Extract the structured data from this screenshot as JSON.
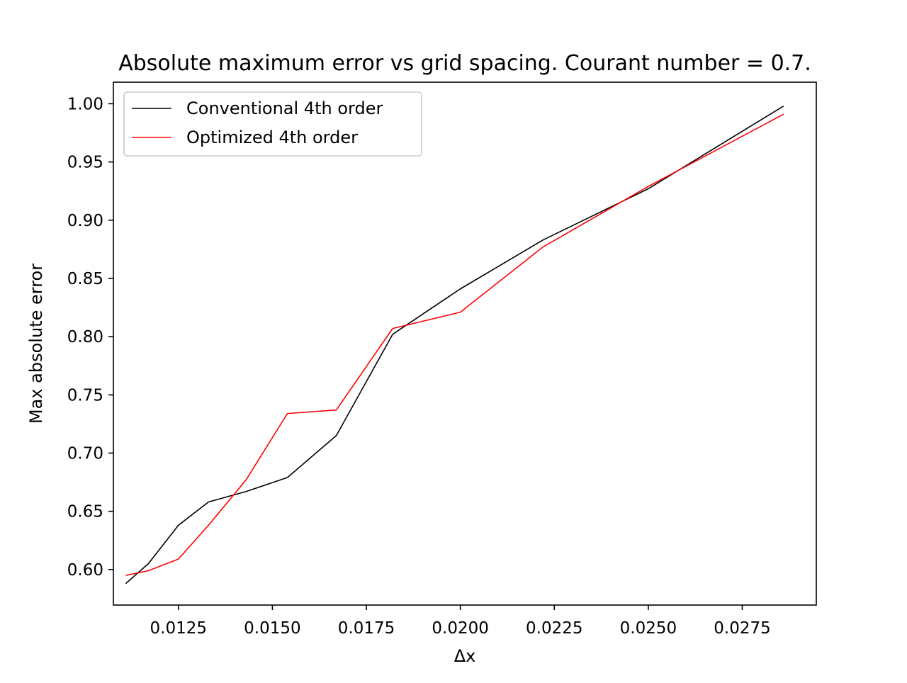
{
  "chart_data": {
    "type": "line",
    "title": "Absolute maximum error vs grid spacing. Courant number = 0.7.",
    "xlabel": "Δx",
    "ylabel": "Max absolute error",
    "xlim": [
      0.01077,
      0.02947
    ],
    "ylim": [
      0.5695,
      1.0185
    ],
    "x_ticks": [
      0.0125,
      0.015,
      0.0175,
      0.02,
      0.0225,
      0.025,
      0.0275
    ],
    "x_tick_labels": [
      "0.0125",
      "0.0150",
      "0.0175",
      "0.0200",
      "0.0225",
      "0.0250",
      "0.0275"
    ],
    "y_ticks": [
      0.6,
      0.65,
      0.7,
      0.75,
      0.8,
      0.85,
      0.9,
      0.95,
      1.0
    ],
    "y_tick_labels": [
      "0.60",
      "0.65",
      "0.70",
      "0.75",
      "0.80",
      "0.85",
      "0.90",
      "0.95",
      "1.00"
    ],
    "grid": false,
    "legend_position": "top-left",
    "series": [
      {
        "name": "Conventional 4th order",
        "color": "#000000",
        "x": [
          0.0111,
          0.0117,
          0.0125,
          0.0133,
          0.0143,
          0.0154,
          0.0167,
          0.0182,
          0.02,
          0.0222,
          0.025,
          0.0286
        ],
        "y": [
          0.588,
          0.605,
          0.638,
          0.658,
          0.667,
          0.679,
          0.715,
          0.802,
          0.841,
          0.883,
          0.927,
          0.998
        ]
      },
      {
        "name": "Optimized 4th order",
        "color": "#ff0000",
        "x": [
          0.0111,
          0.0117,
          0.0125,
          0.0133,
          0.0143,
          0.0154,
          0.0167,
          0.0182,
          0.02,
          0.0222,
          0.025,
          0.0286
        ],
        "y": [
          0.595,
          0.599,
          0.609,
          0.638,
          0.677,
          0.734,
          0.737,
          0.807,
          0.821,
          0.877,
          0.929,
          0.991
        ]
      }
    ]
  }
}
